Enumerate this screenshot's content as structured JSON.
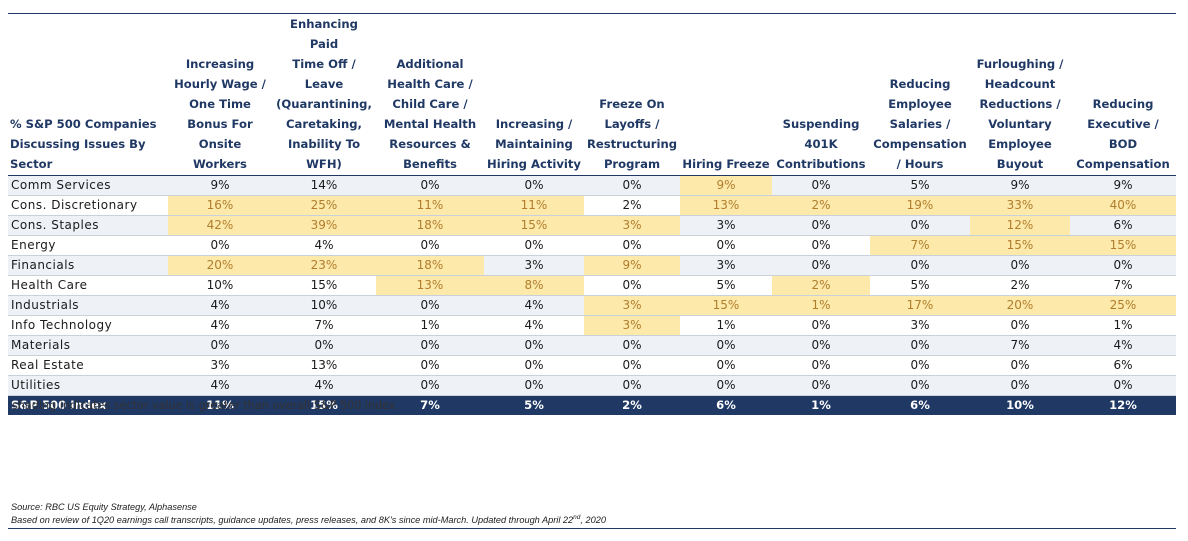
{
  "chart_data": {
    "type": "table",
    "title": "",
    "columns": [
      "% S&P 500 Companies\nDiscussing Issues By\nSector",
      "Increasing\nHourly Wage /\nOne Time\nBonus For\nOnsite Workers",
      "Enhancing Paid\nTime Off /\nLeave\n(Quarantining,\nCaretaking,\nInability To\nWFH)",
      "Additional\nHealth Care /\nChild Care /\nMental Health\nResources &\nBenefits",
      "Increasing /\nMaintaining\nHiring Activity",
      "Freeze On\nLayoffs /\nRestructuring\nProgram",
      "Hiring Freeze",
      "Suspending\n401K\nContributions",
      "Reducing\nEmployee\nSalaries /\nCompensation\n/ Hours",
      "Furloughing /\nHeadcount\nReductions /\nVoluntary\nEmployee\nBuyout",
      "Reducing\nExecutive /\nBOD\nCompensation"
    ],
    "rows": [
      {
        "sector": "Comm Services",
        "values": [
          "9%",
          "14%",
          "0%",
          "0%",
          "0%",
          "9%",
          "0%",
          "5%",
          "9%",
          "9%"
        ],
        "highlight": [
          false,
          false,
          false,
          false,
          false,
          true,
          false,
          false,
          false,
          false
        ]
      },
      {
        "sector": "Cons. Discretionary",
        "values": [
          "16%",
          "25%",
          "11%",
          "11%",
          "2%",
          "13%",
          "2%",
          "19%",
          "33%",
          "40%"
        ],
        "highlight": [
          true,
          true,
          true,
          true,
          false,
          true,
          true,
          true,
          true,
          true
        ]
      },
      {
        "sector": "Cons. Staples",
        "values": [
          "42%",
          "39%",
          "18%",
          "15%",
          "3%",
          "3%",
          "0%",
          "0%",
          "12%",
          "6%"
        ],
        "highlight": [
          true,
          true,
          true,
          true,
          true,
          false,
          false,
          false,
          true,
          false
        ]
      },
      {
        "sector": "Energy",
        "values": [
          "0%",
          "4%",
          "0%",
          "0%",
          "0%",
          "0%",
          "0%",
          "7%",
          "15%",
          "15%"
        ],
        "highlight": [
          false,
          false,
          false,
          false,
          false,
          false,
          false,
          true,
          true,
          true
        ]
      },
      {
        "sector": "Financials",
        "values": [
          "20%",
          "23%",
          "18%",
          "3%",
          "9%",
          "3%",
          "0%",
          "0%",
          "0%",
          "0%"
        ],
        "highlight": [
          true,
          true,
          true,
          false,
          true,
          false,
          false,
          false,
          false,
          false
        ]
      },
      {
        "sector": "Health Care",
        "values": [
          "10%",
          "15%",
          "13%",
          "8%",
          "0%",
          "5%",
          "2%",
          "5%",
          "2%",
          "7%"
        ],
        "highlight": [
          false,
          false,
          true,
          true,
          false,
          false,
          true,
          false,
          false,
          false
        ]
      },
      {
        "sector": "Industrials",
        "values": [
          "4%",
          "10%",
          "0%",
          "4%",
          "3%",
          "15%",
          "1%",
          "17%",
          "20%",
          "25%"
        ],
        "highlight": [
          false,
          false,
          false,
          false,
          true,
          true,
          true,
          true,
          true,
          true
        ]
      },
      {
        "sector": "Info Technology",
        "values": [
          "4%",
          "7%",
          "1%",
          "4%",
          "3%",
          "1%",
          "0%",
          "3%",
          "0%",
          "1%"
        ],
        "highlight": [
          false,
          false,
          false,
          false,
          true,
          false,
          false,
          false,
          false,
          false
        ]
      },
      {
        "sector": "Materials",
        "values": [
          "0%",
          "0%",
          "0%",
          "0%",
          "0%",
          "0%",
          "0%",
          "0%",
          "7%",
          "4%"
        ],
        "highlight": [
          false,
          false,
          false,
          false,
          false,
          false,
          false,
          false,
          false,
          false
        ]
      },
      {
        "sector": "Real Estate",
        "values": [
          "3%",
          "13%",
          "0%",
          "0%",
          "0%",
          "0%",
          "0%",
          "0%",
          "0%",
          "6%"
        ],
        "highlight": [
          false,
          false,
          false,
          false,
          false,
          false,
          false,
          false,
          false,
          false
        ]
      },
      {
        "sector": "Utilities",
        "values": [
          "4%",
          "4%",
          "0%",
          "0%",
          "0%",
          "0%",
          "0%",
          "0%",
          "0%",
          "0%"
        ],
        "highlight": [
          false,
          false,
          false,
          false,
          false,
          false,
          false,
          false,
          false,
          false
        ]
      }
    ],
    "index_row": {
      "sector": "S&P 500 Index",
      "values": [
        "11%",
        "15%",
        "7%",
        "5%",
        "2%",
        "6%",
        "1%",
        "6%",
        "10%",
        "12%"
      ]
    },
    "footnote": "shading indicates sector value is greater than overall S&P 500 index",
    "source": "Source: RBC US Equity Strategy, Alphasense",
    "basis": "Based on review of 1Q20 earnings call transcripts, guidance updates, press releases, and 8K's since mid-March. Updated through April 22nd, 2020"
  },
  "colors": {
    "header_text": "#1f3864",
    "index_row_bg": "#1f3864",
    "highlight_bg": "#fde9a9",
    "highlight_text": "#b07d2e",
    "alt_row_bg": "#eef1f6"
  }
}
